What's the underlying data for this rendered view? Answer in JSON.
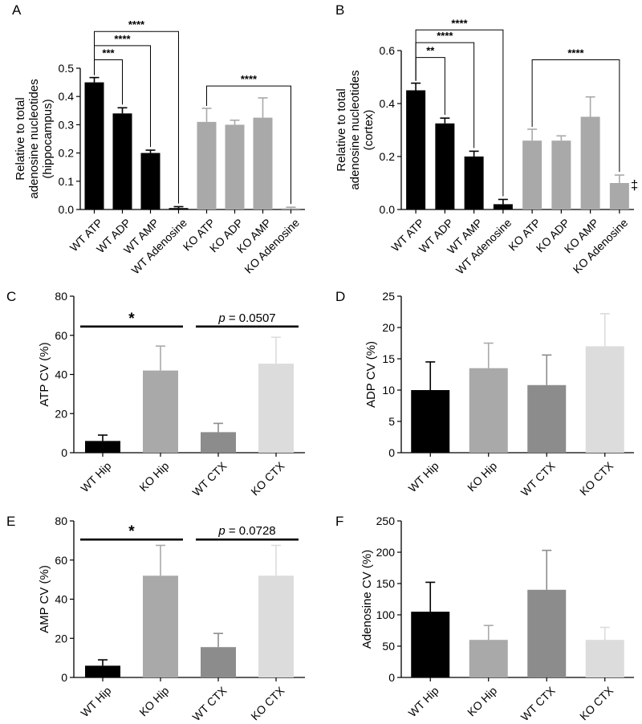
{
  "charts": [
    {
      "panel": "A",
      "type": "bar",
      "ylabel_lines": [
        "Relative to total",
        "adenosine nucleotides",
        "(hippocampus)"
      ],
      "ylim": [
        0,
        0.5
      ],
      "yticks": [
        "0.0",
        "0.1",
        "0.2",
        "0.3",
        "0.4",
        "0.5"
      ],
      "categories": [
        "WT ATP",
        "WT ADP",
        "WT AMP",
        "WT Adenosine",
        "KO ATP",
        "KO ADP",
        "KO AMP",
        "KO Adenosine"
      ],
      "values": [
        0.45,
        0.34,
        0.2,
        0.005,
        0.31,
        0.3,
        0.325,
        0.004
      ],
      "errors": [
        0.017,
        0.02,
        0.01,
        0.005,
        0.048,
        0.016,
        0.07,
        0.004
      ],
      "colors": [
        "#000000",
        "#000000",
        "#000000",
        "#000000",
        "#a9a9a9",
        "#a9a9a9",
        "#a9a9a9",
        "#a9a9a9"
      ],
      "brackets": [
        {
          "from": 0,
          "to": 1,
          "y": 0.53,
          "label": "***"
        },
        {
          "from": 0,
          "to": 2,
          "y": 0.58,
          "label": "****"
        },
        {
          "from": 0,
          "to": 3,
          "y": 0.63,
          "label": "****"
        },
        {
          "from": 4,
          "to": 7,
          "y": 0.437,
          "label": "****"
        }
      ]
    },
    {
      "panel": "B",
      "type": "bar",
      "ylabel_lines": [
        "Relative to total",
        "adenosine nucleotides",
        "(cortex)"
      ],
      "ylim": [
        0,
        0.6
      ],
      "yticks": [
        "0.0",
        "0.2",
        "0.4",
        "0.6"
      ],
      "categories": [
        "WT ATP",
        "WT ADP",
        "WT AMP",
        "WT Adenosine",
        "KO ATP",
        "KO ADP",
        "KO AMP",
        "KO Adenosine"
      ],
      "values": [
        0.45,
        0.325,
        0.2,
        0.02,
        0.26,
        0.26,
        0.35,
        0.1
      ],
      "errors": [
        0.027,
        0.02,
        0.02,
        0.018,
        0.043,
        0.018,
        0.075,
        0.03
      ],
      "colors": [
        "#000000",
        "#000000",
        "#000000",
        "#000000",
        "#a9a9a9",
        "#a9a9a9",
        "#a9a9a9",
        "#a9a9a9"
      ],
      "brackets": [
        {
          "from": 0,
          "to": 1,
          "y": 0.574,
          "label": "**"
        },
        {
          "from": 0,
          "to": 2,
          "y": 0.63,
          "label": "****"
        },
        {
          "from": 0,
          "to": 3,
          "y": 0.678,
          "label": "****"
        },
        {
          "from": 4,
          "to": 7,
          "y": 0.565,
          "label": "****"
        }
      ],
      "annotation": {
        "index": 7,
        "label": "‡"
      }
    },
    {
      "panel": "C",
      "type": "bar",
      "ylabel": "ATP CV (%)",
      "ylim": [
        0,
        80
      ],
      "yticks": [
        "0",
        "20",
        "40",
        "60",
        "80"
      ],
      "categories": [
        "WT Hip",
        "KO Hip",
        "WT CTX",
        "KO CTX"
      ],
      "values": [
        6,
        42,
        10.5,
        45.5
      ],
      "errors": [
        3,
        12.5,
        4.5,
        13.5
      ],
      "colors": [
        "#000000",
        "#a9a9a9",
        "#8c8c8c",
        "#dcdcdc"
      ],
      "sig": [
        {
          "from": 0,
          "to": 1,
          "y": 64.5,
          "label": "*"
        },
        {
          "from": 2,
          "to": 3,
          "y": 64.5,
          "label_p": "p",
          "label_rest": " = 0.0507"
        }
      ]
    },
    {
      "panel": "D",
      "type": "bar",
      "ylabel": "ADP CV (%)",
      "ylim": [
        0,
        25
      ],
      "yticks": [
        "0",
        "5",
        "10",
        "15",
        "20",
        "25"
      ],
      "categories": [
        "WT Hip",
        "KO Hip",
        "WT CTX",
        "KO CTX"
      ],
      "values": [
        10,
        13.5,
        10.8,
        17
      ],
      "errors": [
        4.5,
        4,
        4.8,
        5.2
      ],
      "colors": [
        "#000000",
        "#a9a9a9",
        "#8c8c8c",
        "#dcdcdc"
      ],
      "sig": []
    },
    {
      "panel": "E",
      "type": "bar",
      "ylabel": "AMP CV (%)",
      "ylim": [
        0,
        80
      ],
      "yticks": [
        "0",
        "20",
        "40",
        "60",
        "80"
      ],
      "categories": [
        "WT Hip",
        "KO Hip",
        "WT CTX",
        "KO CTX"
      ],
      "values": [
        6,
        52,
        15.5,
        52
      ],
      "errors": [
        3,
        15.5,
        7,
        15.5
      ],
      "colors": [
        "#000000",
        "#a9a9a9",
        "#8c8c8c",
        "#dcdcdc"
      ],
      "sig": [
        {
          "from": 0,
          "to": 1,
          "y": 70.5,
          "label": "*"
        },
        {
          "from": 2,
          "to": 3,
          "y": 70.5,
          "label_p": "p",
          "label_rest": " = 0.0728"
        }
      ]
    },
    {
      "panel": "F",
      "type": "bar",
      "ylabel": "Adenosine CV (%)",
      "ylim": [
        0,
        250
      ],
      "yticks": [
        "0",
        "50",
        "100",
        "150",
        "200",
        "250"
      ],
      "categories": [
        "WT Hip",
        "KO Hip",
        "WT CTX",
        "KO CTX"
      ],
      "values": [
        105,
        60,
        140,
        60
      ],
      "errors": [
        47,
        23,
        63,
        20
      ],
      "colors": [
        "#000000",
        "#a9a9a9",
        "#8c8c8c",
        "#dcdcdc"
      ],
      "sig": []
    }
  ]
}
